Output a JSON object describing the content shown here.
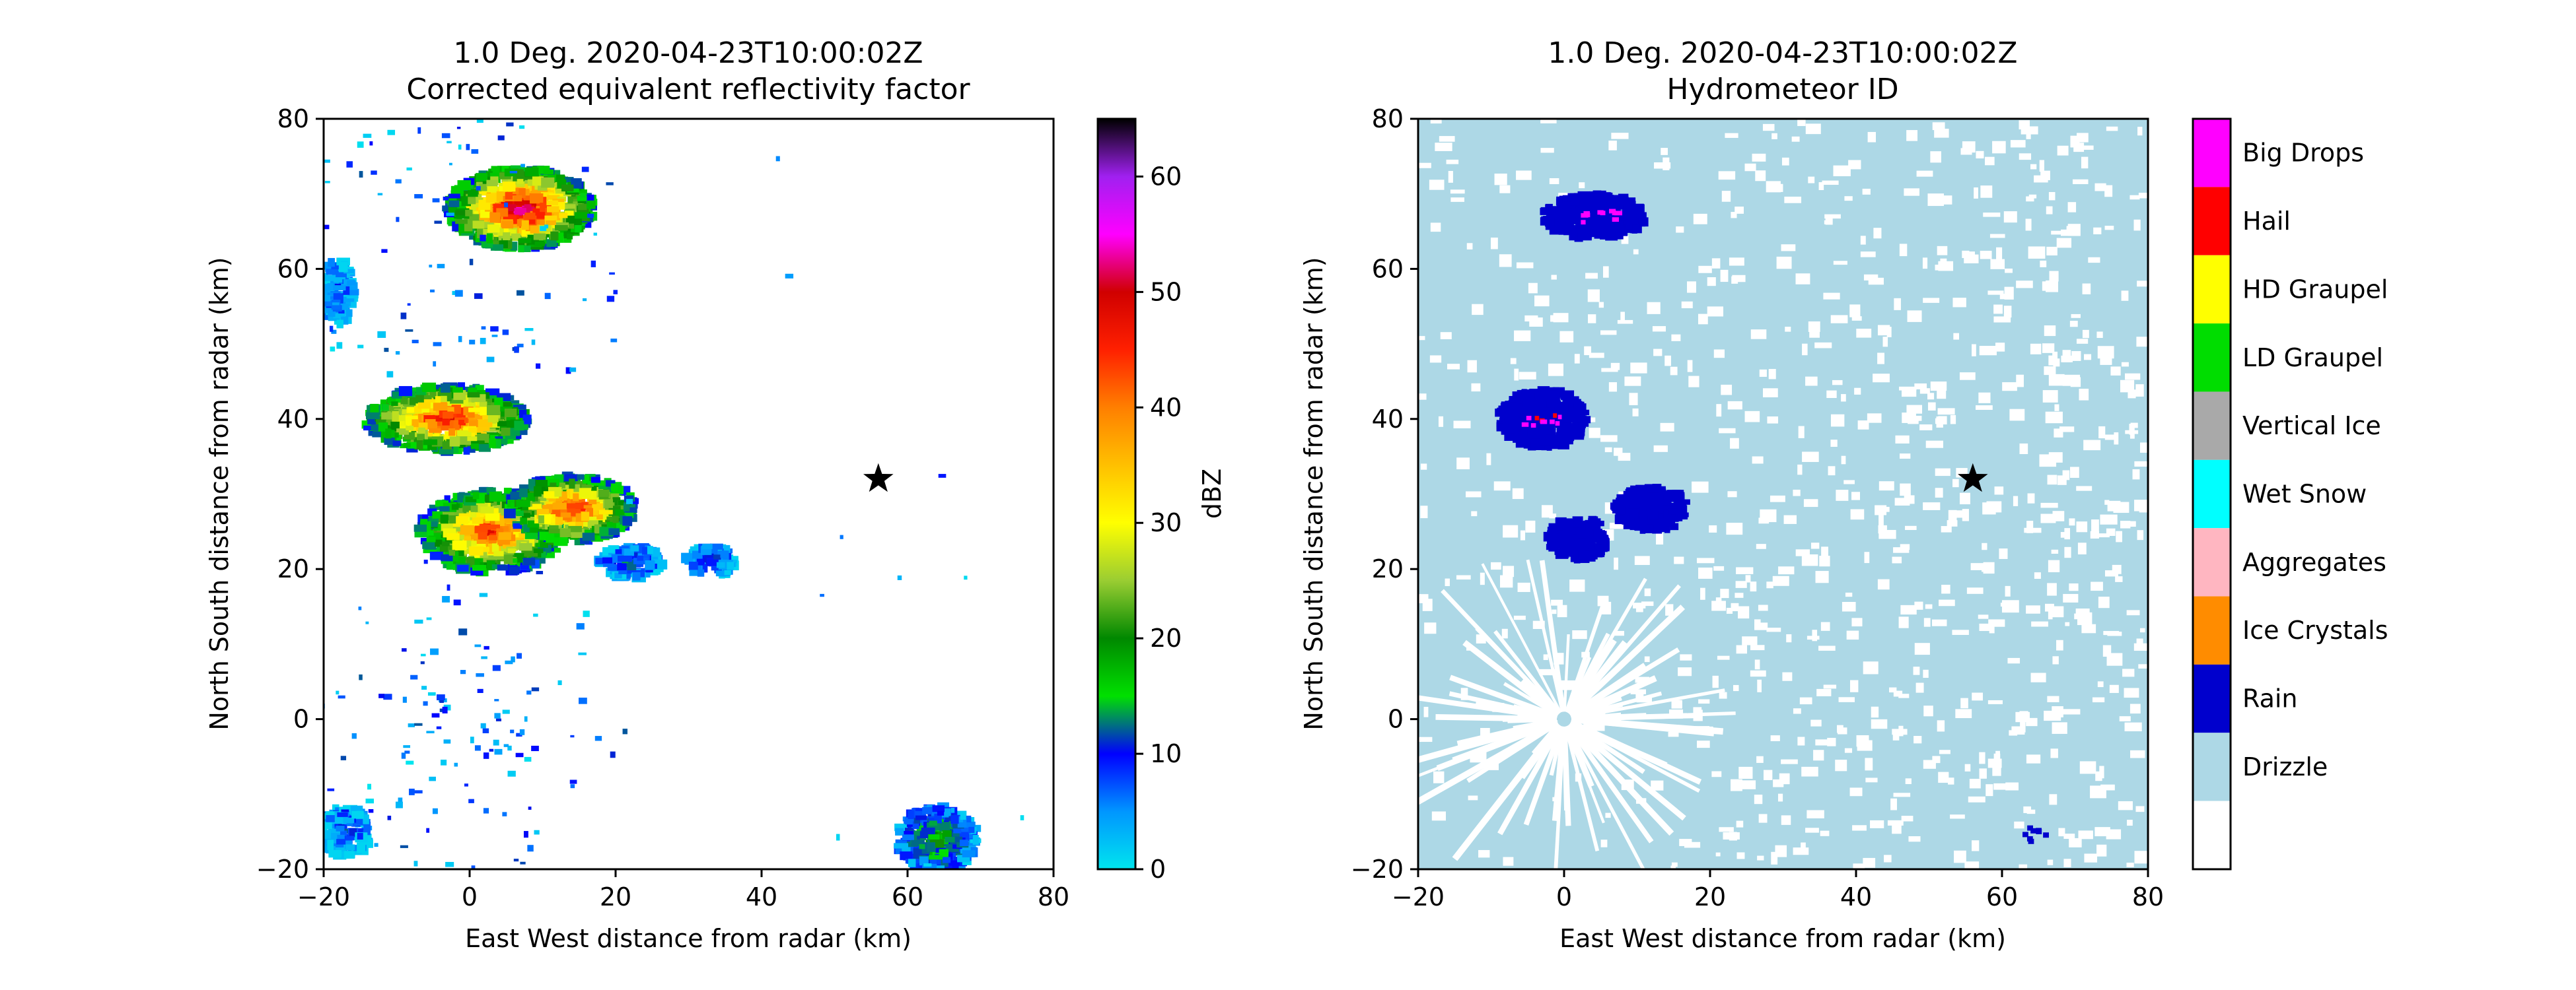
{
  "colors": {
    "drizzle": "#add8e6",
    "rain": "#0000cd",
    "hail": "#ff0000",
    "big_drops": "#ff00ff",
    "ld_graupel": "#00dd00",
    "hd_graupel": "#ffff00",
    "wet_snow": "#00ffff",
    "vertical_ice": "#a9a9a9",
    "aggregates": "#ffb6c1",
    "ice_crystals": "#ff8c00",
    "star": "#000000"
  },
  "chart_data": [
    {
      "type": "heatmap",
      "title": "1.0 Deg. 2020-04-23T10:00:02Z",
      "subtitle": "Corrected equivalent reflectivity factor",
      "xlabel": "East West distance from radar (km)",
      "ylabel": "North South distance from radar (km)",
      "xlim": [
        -20,
        80
      ],
      "ylim": [
        -20,
        80
      ],
      "xticks": [
        -20,
        0,
        20,
        40,
        60,
        80
      ],
      "yticks": [
        -20,
        0,
        20,
        40,
        60,
        80
      ],
      "marker": {
        "symbol": "star",
        "x": 56,
        "y": 32
      },
      "colorbar": {
        "label": "dBZ",
        "range": [
          0,
          65
        ],
        "ticks": [
          0,
          10,
          20,
          30,
          40,
          50,
          60
        ],
        "stops": [
          {
            "v": 0,
            "c": "#00e5ee"
          },
          {
            "v": 5,
            "c": "#0096ff"
          },
          {
            "v": 10,
            "c": "#0000ff"
          },
          {
            "v": 15,
            "c": "#00e000"
          },
          {
            "v": 20,
            "c": "#008800"
          },
          {
            "v": 25,
            "c": "#9acd32"
          },
          {
            "v": 30,
            "c": "#ffff00"
          },
          {
            "v": 35,
            "c": "#ffc000"
          },
          {
            "v": 40,
            "c": "#ff7f00"
          },
          {
            "v": 45,
            "c": "#ff2000"
          },
          {
            "v": 50,
            "c": "#d00000"
          },
          {
            "v": 55,
            "c": "#ff00ff"
          },
          {
            "v": 60,
            "c": "#a020f0"
          },
          {
            "v": 65,
            "c": "#000000"
          }
        ]
      },
      "cells": [
        {
          "x": 7,
          "y": 68,
          "rx": 9,
          "ry": 5,
          "peak": 52
        },
        {
          "x": -3,
          "y": 40,
          "rx": 10,
          "ry": 4,
          "peak": 48
        },
        {
          "x": 3,
          "y": 25,
          "rx": 9,
          "ry": 5,
          "peak": 44
        },
        {
          "x": 14,
          "y": 28,
          "rx": 8,
          "ry": 4,
          "peak": 46
        },
        {
          "x": 22,
          "y": 21,
          "rx": 4,
          "ry": 2,
          "peak": 12
        },
        {
          "x": 33,
          "y": 21,
          "rx": 3,
          "ry": 2,
          "peak": 10
        },
        {
          "x": 64,
          "y": -16,
          "rx": 5,
          "ry": 4,
          "peak": 18
        },
        {
          "x": -17,
          "y": -15,
          "rx": 3,
          "ry": 3,
          "peak": 10
        },
        {
          "x": -18,
          "y": 57,
          "rx": 2,
          "ry": 4,
          "peak": 8
        }
      ]
    },
    {
      "type": "heatmap",
      "title": "1.0 Deg. 2020-04-23T10:00:02Z",
      "subtitle": "Hydrometeor ID",
      "xlabel": "East West distance from radar (km)",
      "ylabel": "North South distance from radar (km)",
      "xlim": [
        -20,
        80
      ],
      "ylim": [
        -20,
        80
      ],
      "xticks": [
        -20,
        0,
        20,
        40,
        60,
        80
      ],
      "yticks": [
        -20,
        0,
        20,
        40,
        60,
        80
      ],
      "marker": {
        "symbol": "star",
        "x": 56,
        "y": 32
      },
      "legend": {
        "placement": "right colorbar",
        "categories": [
          "Big Drops",
          "Hail",
          "HD Graupel",
          "LD Graupel",
          "Vertical Ice",
          "Wet Snow",
          "Aggregates",
          "Ice Crystals",
          "Rain",
          "Drizzle",
          ""
        ],
        "colors": [
          "#ff00ff",
          "#ff0000",
          "#ffff00",
          "#00dd00",
          "#a9a9a9",
          "#00ffff",
          "#ffb6c1",
          "#ff8c00",
          "#0000cd",
          "#add8e6",
          "#ffffff"
        ]
      },
      "rain_cells": [
        {
          "x": 4,
          "y": 67,
          "rx": 7,
          "ry": 3
        },
        {
          "x": -3,
          "y": 40,
          "rx": 6,
          "ry": 4
        },
        {
          "x": 2,
          "y": 24,
          "rx": 4,
          "ry": 3
        },
        {
          "x": 12,
          "y": 28,
          "rx": 5,
          "ry": 3
        }
      ]
    }
  ]
}
